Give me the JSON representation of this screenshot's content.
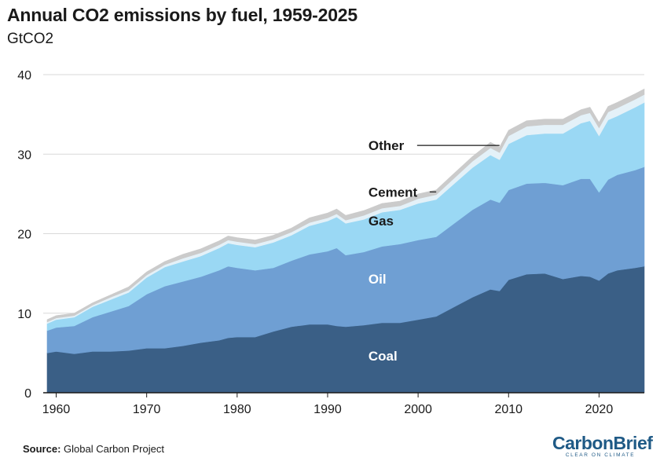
{
  "title": "Annual CO2 emissions by fuel, 1959-2025",
  "unit": "GtCO2",
  "source_label": "Source:",
  "source_text": "Global Carbon Project",
  "brand": {
    "name": "CarbonBrief",
    "tagline": "CLEAR ON CLIMATE",
    "color": "#1f5a86"
  },
  "chart_data": {
    "type": "area",
    "stacked": true,
    "title": "Annual CO2 emissions by fuel, 1959-2025",
    "ylabel": "GtCO2",
    "xlabel": "",
    "xlim": [
      1959,
      2025
    ],
    "ylim": [
      0,
      40
    ],
    "yticks": [
      0,
      10,
      20,
      30,
      40
    ],
    "xticks": [
      1960,
      1970,
      1980,
      1990,
      2000,
      2010,
      2020
    ],
    "grid": true,
    "x": [
      1959,
      1960,
      1962,
      1964,
      1966,
      1968,
      1970,
      1972,
      1974,
      1976,
      1978,
      1979,
      1980,
      1982,
      1984,
      1986,
      1988,
      1990,
      1991,
      1992,
      1994,
      1996,
      1998,
      2000,
      2002,
      2004,
      2006,
      2008,
      2009,
      2010,
      2012,
      2014,
      2016,
      2018,
      2019,
      2020,
      2021,
      2022,
      2024,
      2025
    ],
    "series": [
      {
        "name": "Coal",
        "color": "#3a5f86",
        "values": [
          5.0,
          5.2,
          4.9,
          5.2,
          5.2,
          5.3,
          5.6,
          5.6,
          5.9,
          6.3,
          6.6,
          6.9,
          7.0,
          7.0,
          7.7,
          8.3,
          8.6,
          8.6,
          8.4,
          8.3,
          8.5,
          8.8,
          8.8,
          9.2,
          9.6,
          10.8,
          12.0,
          13.0,
          12.8,
          14.2,
          14.9,
          15.0,
          14.3,
          14.7,
          14.6,
          14.1,
          15.0,
          15.4,
          15.7,
          15.9
        ]
      },
      {
        "name": "Oil",
        "color": "#6f9fd3",
        "values": [
          2.8,
          3.0,
          3.5,
          4.3,
          5.0,
          5.6,
          6.8,
          7.8,
          8.1,
          8.3,
          8.8,
          9.0,
          8.7,
          8.4,
          8.0,
          8.3,
          8.8,
          9.2,
          9.8,
          9.0,
          9.2,
          9.6,
          9.9,
          10.0,
          10.0,
          10.5,
          11.0,
          11.3,
          11.1,
          11.3,
          11.4,
          11.4,
          11.8,
          12.2,
          12.3,
          11.1,
          11.8,
          12.0,
          12.3,
          12.5
        ]
      },
      {
        "name": "Gas",
        "color": "#9ad8f4",
        "values": [
          0.9,
          1.0,
          1.1,
          1.3,
          1.5,
          1.7,
          2.1,
          2.4,
          2.5,
          2.6,
          2.8,
          2.9,
          2.9,
          2.9,
          3.2,
          3.2,
          3.6,
          3.8,
          3.9,
          4.0,
          4.1,
          4.3,
          4.3,
          4.6,
          4.7,
          5.0,
          5.3,
          5.6,
          5.4,
          5.8,
          6.1,
          6.2,
          6.5,
          7.0,
          7.3,
          7.1,
          7.5,
          7.4,
          7.9,
          8.1
        ]
      },
      {
        "name": "Cement",
        "color": "#e4f1f8",
        "values": [
          0.2,
          0.2,
          0.2,
          0.2,
          0.3,
          0.3,
          0.3,
          0.3,
          0.4,
          0.4,
          0.4,
          0.4,
          0.4,
          0.4,
          0.4,
          0.4,
          0.4,
          0.4,
          0.4,
          0.4,
          0.5,
          0.5,
          0.5,
          0.6,
          0.6,
          0.7,
          0.8,
          0.9,
          0.9,
          1.0,
          1.1,
          1.1,
          1.1,
          1.0,
          1.0,
          1.0,
          1.0,
          1.0,
          1.0,
          1.0
        ]
      },
      {
        "name": "Other",
        "color": "#cbcbcb",
        "values": [
          0.3,
          0.3,
          0.3,
          0.3,
          0.3,
          0.4,
          0.4,
          0.4,
          0.5,
          0.5,
          0.5,
          0.5,
          0.5,
          0.5,
          0.5,
          0.5,
          0.6,
          0.6,
          0.6,
          0.6,
          0.6,
          0.6,
          0.6,
          0.6,
          0.6,
          0.6,
          0.6,
          0.7,
          0.7,
          0.7,
          0.7,
          0.7,
          0.7,
          0.7,
          0.7,
          0.7,
          0.7,
          0.7,
          0.7,
          0.7
        ]
      }
    ],
    "annotations": [
      {
        "series": "Other",
        "text": "Other",
        "text_color": "#1a1a1a",
        "leader_to_year": 2009
      },
      {
        "series": "Cement",
        "text": "Cement",
        "text_color": "#1a1a1a",
        "leader_to_year": 2002
      },
      {
        "series": "Gas",
        "text": "Gas",
        "text_color": "#1a1a1a"
      },
      {
        "series": "Oil",
        "text": "Oil",
        "text_color": "#ffffff"
      },
      {
        "series": "Coal",
        "text": "Coal",
        "text_color": "#ffffff"
      }
    ]
  }
}
